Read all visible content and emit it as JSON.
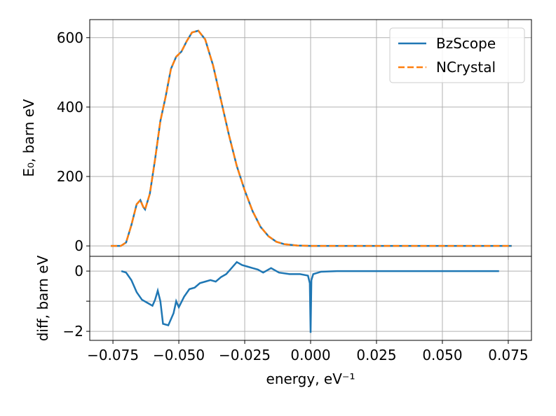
{
  "chart_data": [
    {
      "type": "line",
      "ylabel": "E₀, barn eV",
      "x": [
        -0.0758,
        -0.072,
        -0.07,
        -0.068,
        -0.066,
        -0.0646,
        -0.0635,
        -0.0628,
        -0.061,
        -0.059,
        -0.057,
        -0.055,
        -0.053,
        -0.051,
        -0.049,
        -0.047,
        -0.045,
        -0.0426,
        -0.04,
        -0.037,
        -0.034,
        -0.031,
        -0.028,
        -0.025,
        -0.022,
        -0.019,
        -0.016,
        -0.013,
        -0.01,
        -0.005,
        0.0,
        0.0763
      ],
      "series": [
        {
          "name": "BzScope",
          "color": "#1f77b4",
          "line_style": "solid",
          "values": [
            0,
            0,
            10,
            60,
            120,
            132,
            112,
            105,
            150,
            250,
            360,
            430,
            510,
            545,
            560,
            590,
            615,
            620,
            595,
            520,
            420,
            320,
            230,
            160,
            100,
            55,
            28,
            12,
            5,
            1,
            0,
            0
          ]
        },
        {
          "name": "NCrystal",
          "color": "#ff7f0e",
          "line_style": "dashed",
          "values": [
            0,
            0,
            10,
            60,
            120,
            132,
            112,
            105,
            150,
            250,
            360,
            430,
            510,
            545,
            560,
            590,
            615,
            620,
            595,
            520,
            420,
            320,
            230,
            160,
            100,
            55,
            28,
            12,
            5,
            1,
            0,
            0
          ]
        }
      ],
      "xlim": [
        -0.0838,
        0.0838
      ],
      "ylim": [
        -30,
        652
      ],
      "yticks": [
        0,
        200,
        400,
        600
      ],
      "grid": true,
      "legend": "upper right"
    },
    {
      "type": "line",
      "xlabel": "energy, eV⁻¹",
      "ylabel": "diff, barn eV",
      "x": [
        -0.0718,
        -0.07,
        -0.068,
        -0.066,
        -0.064,
        -0.062,
        -0.06,
        -0.059,
        -0.058,
        -0.057,
        -0.056,
        -0.054,
        -0.053,
        -0.052,
        -0.051,
        -0.05,
        -0.048,
        -0.046,
        -0.044,
        -0.042,
        -0.04,
        -0.038,
        -0.036,
        -0.034,
        -0.032,
        -0.03,
        -0.028,
        -0.026,
        -0.024,
        -0.022,
        -0.02,
        -0.018,
        -0.015,
        -0.012,
        -0.008,
        -0.004,
        -0.001,
        -0.0003,
        0.0,
        0.0003,
        0.001,
        0.004,
        0.01,
        0.0715
      ],
      "series": [
        {
          "name": "BzScope",
          "color": "#1f77b4",
          "line_style": "solid",
          "values": [
            0,
            -0.05,
            -0.3,
            -0.7,
            -0.95,
            -1.05,
            -1.15,
            -0.95,
            -0.65,
            -1.0,
            -1.75,
            -1.8,
            -1.6,
            -1.4,
            -1.0,
            -1.2,
            -0.85,
            -0.6,
            -0.55,
            -0.4,
            -0.35,
            -0.3,
            -0.35,
            -0.2,
            -0.1,
            0.1,
            0.3,
            0.2,
            0.15,
            0.1,
            0.05,
            -0.05,
            0.1,
            -0.05,
            -0.1,
            -0.1,
            -0.15,
            -0.4,
            -2.05,
            -0.3,
            -0.1,
            -0.02,
            0,
            0
          ]
        }
      ],
      "xlim": [
        -0.0838,
        0.0838
      ],
      "xticks": [
        {
          "value": -0.075,
          "label": "−0.075"
        },
        {
          "value": -0.05,
          "label": "−0.050"
        },
        {
          "value": -0.025,
          "label": "−0.025"
        },
        {
          "value": 0,
          "label": "0.000"
        },
        {
          "value": 0.025,
          "label": "0.025"
        },
        {
          "value": 0.05,
          "label": "0.050"
        },
        {
          "value": 0.075,
          "label": "0.075"
        }
      ],
      "ylim": [
        -2.3,
        0.49
      ],
      "yticks": [
        {
          "value": -2,
          "label": "−2"
        },
        {
          "value": -1,
          "label": null
        },
        0
      ],
      "grid": true
    }
  ]
}
